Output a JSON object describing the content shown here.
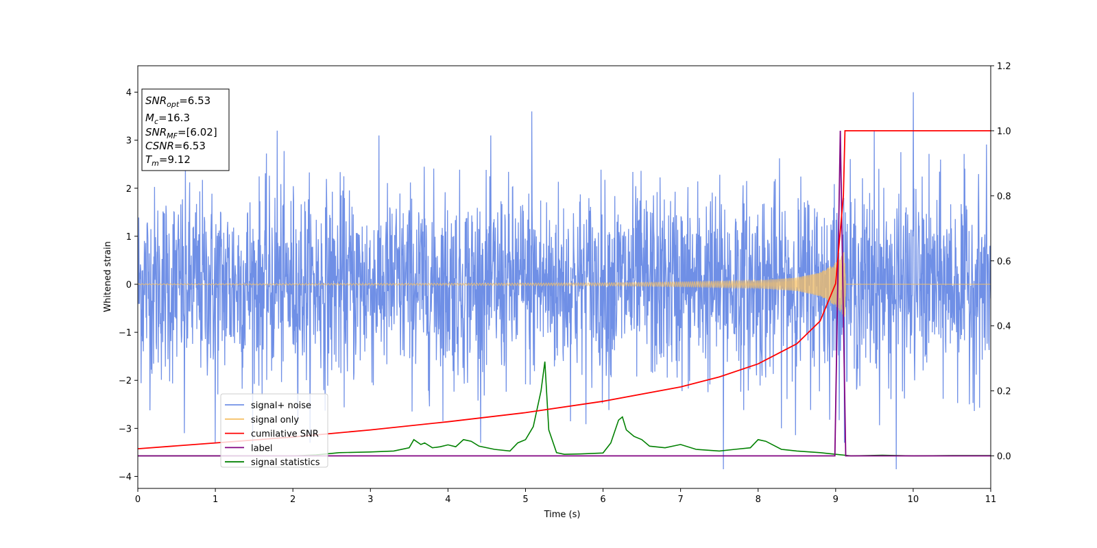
{
  "chart_data": {
    "type": "line",
    "xlabel": "Time (s)",
    "ylabel": "Whitened strain",
    "xlim": [
      0,
      11
    ],
    "ylim": [
      -4.25,
      4.55
    ],
    "y2lim": [
      -0.1,
      1.2
    ],
    "xticks": [
      "0",
      "1",
      "2",
      "3",
      "4",
      "5",
      "6",
      "7",
      "8",
      "9",
      "10",
      "11"
    ],
    "yticks": [
      "−4",
      "−3",
      "−2",
      "−1",
      "0",
      "1",
      "2",
      "3",
      "4"
    ],
    "y2ticks": [
      "0.0",
      "0.2",
      "0.4",
      "0.6",
      "0.8",
      "1.0",
      "1.2"
    ],
    "grid": false,
    "legend_position": "lower-left",
    "colors": {
      "signal_noise": "#6f8fe6",
      "signal_only": "#f5c065",
      "cumulative_snr": "#ff0000",
      "label": "#800080",
      "signal_statistics": "#008000"
    },
    "info_box": [
      {
        "main": "SNR",
        "sub": "opt",
        "rest": "=6.53"
      },
      {
        "main": "M",
        "sub": "c",
        "rest": "=16.3"
      },
      {
        "main": "SNR",
        "sub": "MF",
        "rest": "=[6.02]"
      },
      {
        "main": "CSNR",
        "sub": "",
        "rest": "=6.53"
      },
      {
        "main": "T",
        "sub": "m",
        "rest": "=9.12"
      }
    ],
    "series": [
      {
        "name": "signal+ noise",
        "axis": "left",
        "noise_std": 1.0,
        "x_range": [
          0,
          11
        ],
        "peaks": [
          [
            1.8,
            3.2
          ],
          [
            5.08,
            3.6
          ],
          [
            9.5,
            3.2
          ],
          [
            10.0,
            4.0
          ],
          [
            7.55,
            -3.85
          ],
          [
            9.78,
            -3.85
          ],
          [
            1.0,
            -3.3
          ],
          [
            0.6,
            -3.1
          ]
        ]
      },
      {
        "name": "signal only",
        "axis": "left",
        "merger_time": 9.12,
        "amplitude_at_merger": 0.7,
        "x": [
          0,
          2,
          4,
          6,
          7,
          8,
          8.5,
          8.8,
          9.0,
          9.12,
          9.13,
          11
        ],
        "envelope": [
          0.01,
          0.015,
          0.02,
          0.03,
          0.05,
          0.08,
          0.14,
          0.25,
          0.45,
          0.7,
          0,
          0
        ]
      },
      {
        "name": "cumilative SNR",
        "axis": "right",
        "x": [
          0,
          1,
          2,
          3,
          4,
          5,
          6,
          7,
          7.5,
          8,
          8.5,
          8.8,
          9.0,
          9.1,
          9.12,
          11
        ],
        "y": [
          0.022,
          0.04,
          0.058,
          0.08,
          0.105,
          0.133,
          0.168,
          0.212,
          0.243,
          0.283,
          0.345,
          0.415,
          0.53,
          0.8,
          1.0,
          1.0
        ]
      },
      {
        "name": "label",
        "axis": "right",
        "x": [
          0,
          8.99,
          9.06,
          9.13,
          11
        ],
        "y": [
          0.0,
          0.0,
          1.0,
          0.0,
          0.0
        ]
      },
      {
        "name": "signal statistics",
        "axis": "right",
        "x": [
          0,
          1,
          2,
          2.3,
          2.6,
          3.0,
          3.3,
          3.5,
          3.56,
          3.65,
          3.7,
          3.8,
          3.9,
          4.0,
          4.1,
          4.2,
          4.3,
          4.4,
          4.6,
          4.8,
          4.9,
          5.0,
          5.1,
          5.2,
          5.25,
          5.3,
          5.4,
          5.5,
          5.7,
          6.0,
          6.1,
          6.2,
          6.25,
          6.3,
          6.4,
          6.5,
          6.6,
          6.8,
          7.0,
          7.2,
          7.5,
          7.7,
          7.9,
          8.0,
          8.1,
          8.3,
          8.5,
          8.8,
          9.0,
          9.2,
          9.6,
          10,
          10.5,
          11
        ],
        "y": [
          0.0,
          0.0,
          0.0,
          0.003,
          0.01,
          0.012,
          0.015,
          0.025,
          0.05,
          0.035,
          0.04,
          0.025,
          0.028,
          0.034,
          0.028,
          0.05,
          0.045,
          0.03,
          0.02,
          0.015,
          0.04,
          0.05,
          0.09,
          0.2,
          0.29,
          0.08,
          0.01,
          0.005,
          0.006,
          0.009,
          0.04,
          0.11,
          0.12,
          0.08,
          0.06,
          0.05,
          0.03,
          0.025,
          0.035,
          0.02,
          0.015,
          0.02,
          0.025,
          0.05,
          0.045,
          0.02,
          0.015,
          0.01,
          0.005,
          0.0,
          0.002,
          0.0,
          0.001,
          0.001
        ]
      }
    ]
  }
}
